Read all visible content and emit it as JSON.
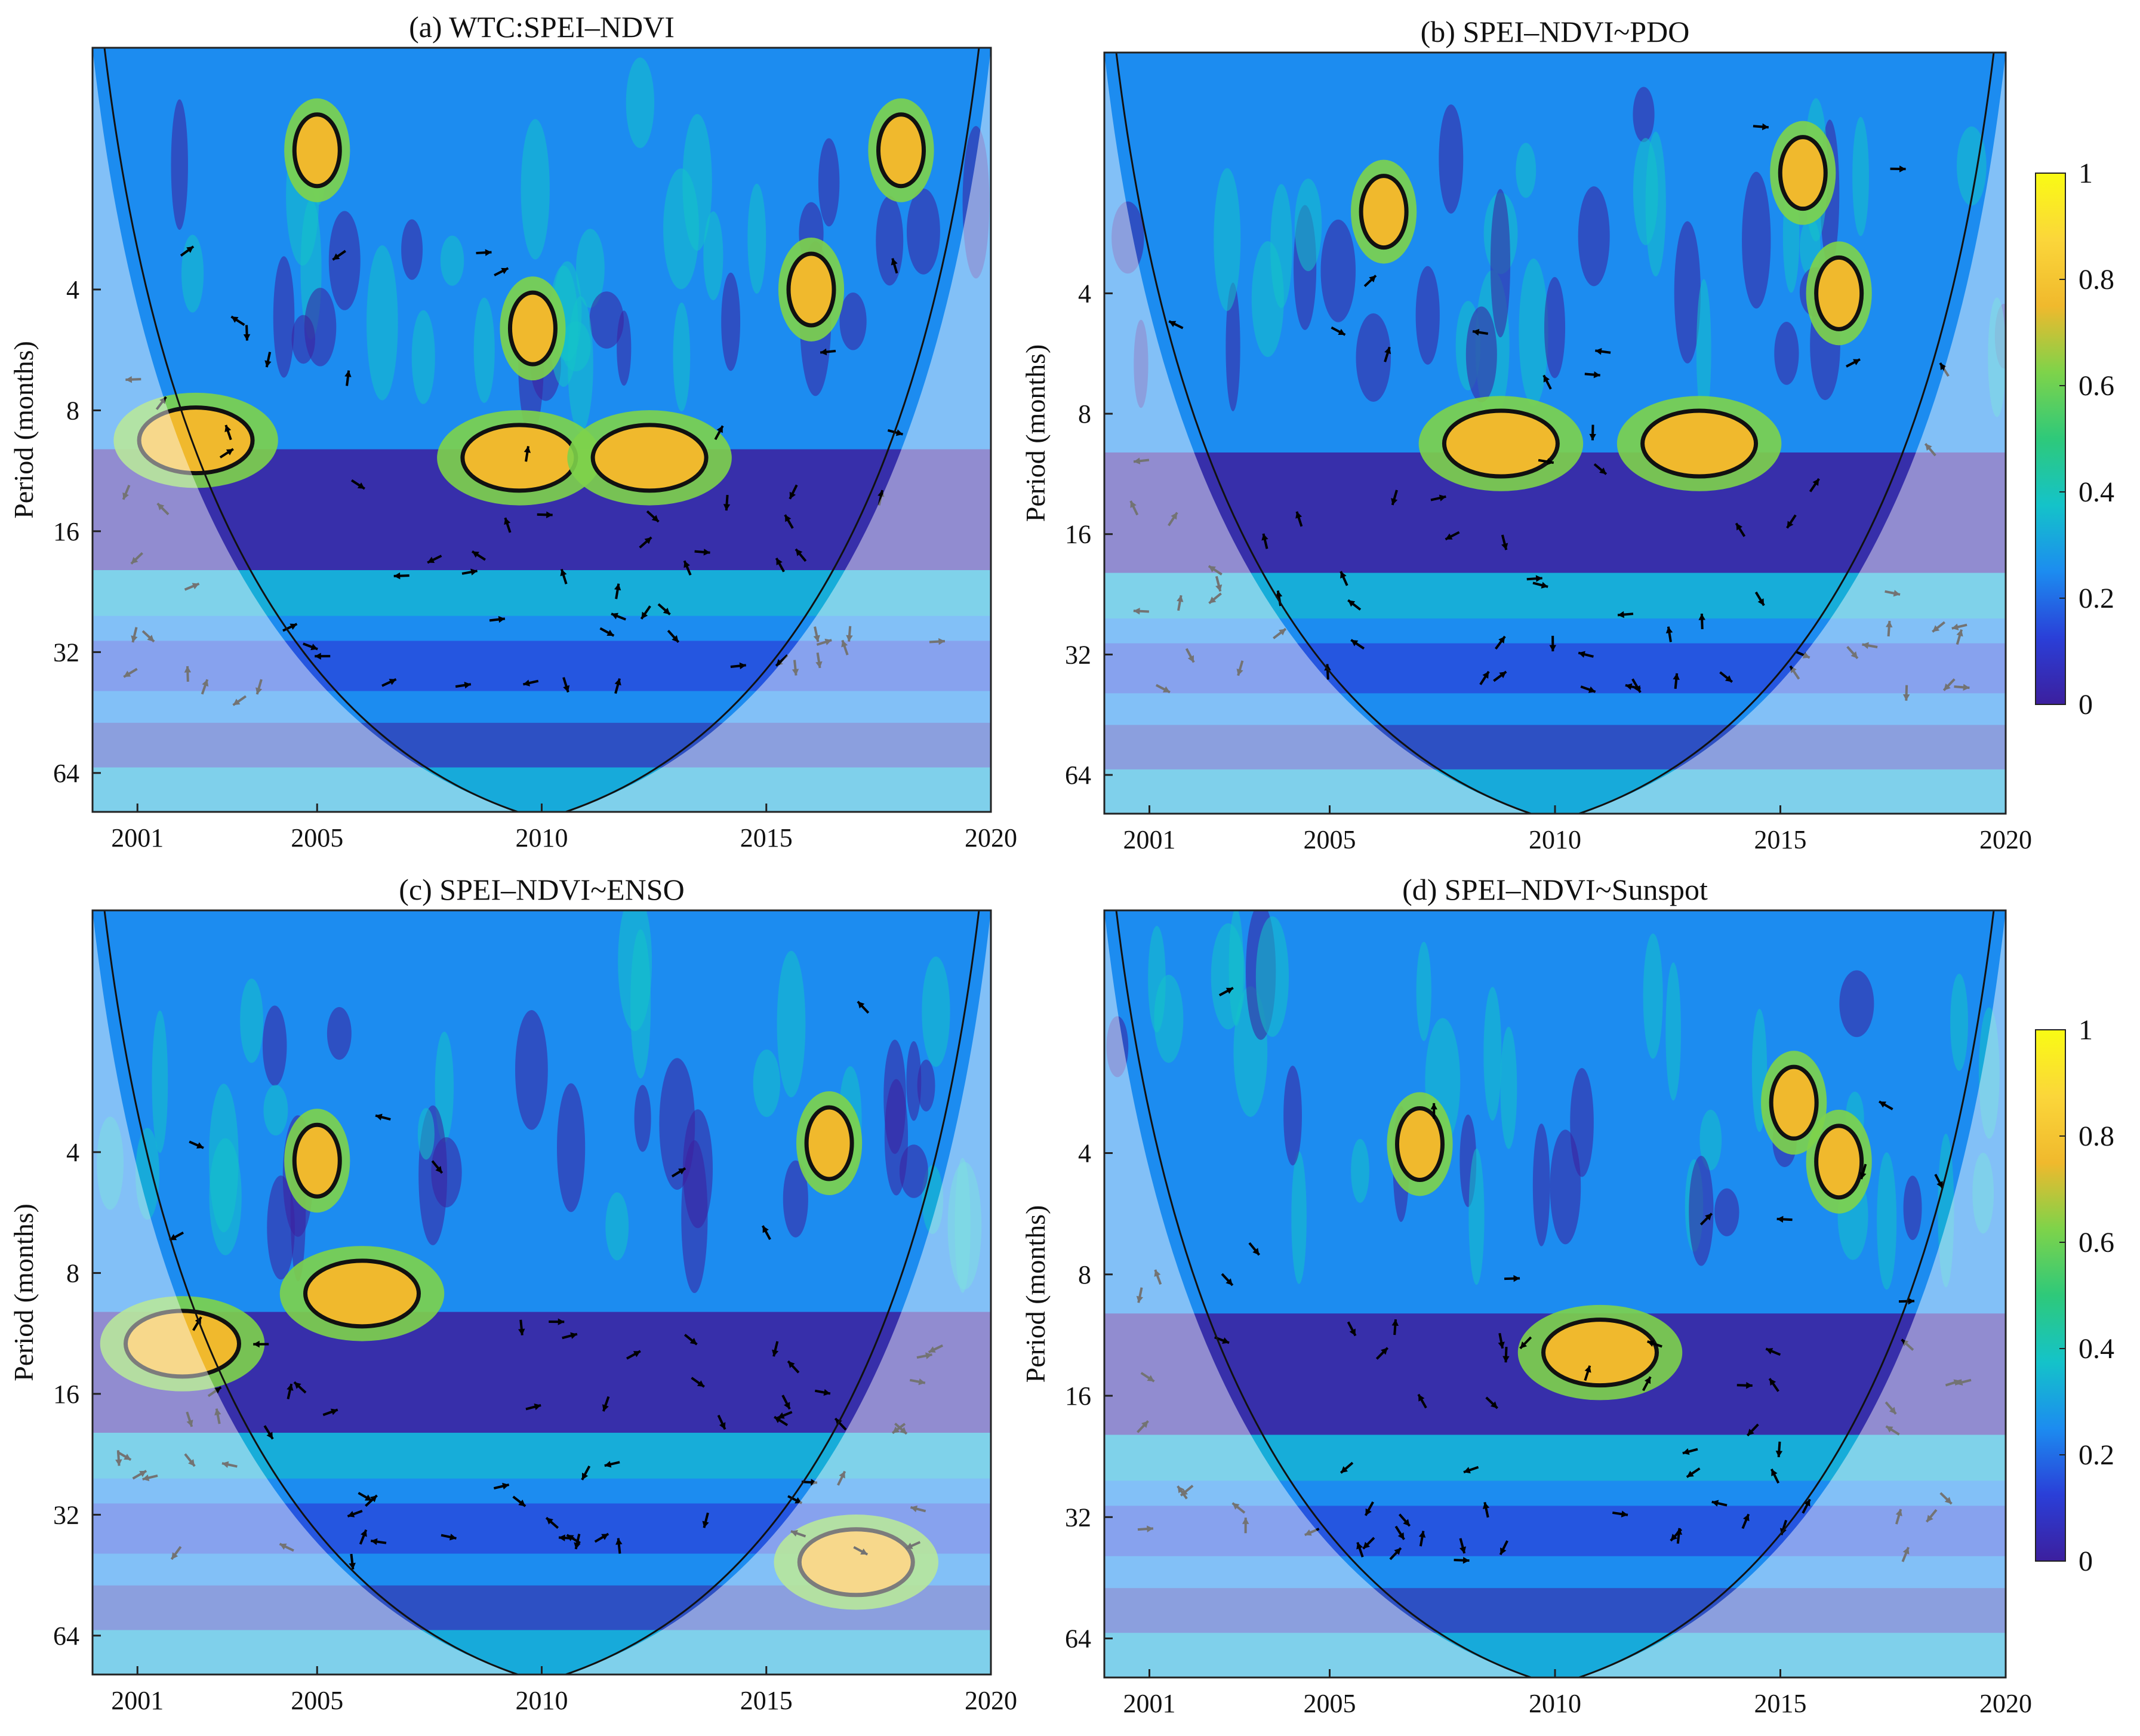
{
  "figure": {
    "colormap": [
      "#3c1f9e",
      "#2a3fd8",
      "#1c8cf0",
      "#14c3c9",
      "#2ec97a",
      "#7ed34a",
      "#f0b92d",
      "#fbd63a",
      "#f9fb14"
    ],
    "coi_overlay": "#ffffff",
    "arrow_color_significant": "#000000",
    "arrow_color_outside": "#8a8a8a",
    "colorbar": {
      "ticks": [
        "0",
        "0.2",
        "0.4",
        "0.6",
        "0.8",
        "1"
      ],
      "range": [
        0,
        1
      ]
    }
  },
  "chart_data": [
    {
      "type": "heatmap",
      "title": "(a) WTC:SPEI–NDVI",
      "ylabel": "Period (months)",
      "xticks": [
        "2001",
        "2005",
        "2010",
        "2015",
        "2020"
      ],
      "yticks": [
        "4",
        "8",
        "16",
        "32",
        "64"
      ],
      "xlim": [
        2000,
        2020
      ],
      "ylim_log2": [
        1,
        80
      ],
      "significant_regions": [
        {
          "x": 2002.3,
          "period": 9.5
        },
        {
          "x": 2009.5,
          "period": 10.5
        },
        {
          "x": 2012.4,
          "period": 10.5
        },
        {
          "x": 2009.8,
          "period": 5.0
        },
        {
          "x": 2016.0,
          "period": 4.0
        },
        {
          "x": 2018.0,
          "period": 1.8
        },
        {
          "x": 2005.0,
          "period": 1.8
        }
      ],
      "colorbar": false
    },
    {
      "type": "heatmap",
      "title": "(b) SPEI–NDVI~PDO",
      "ylabel": "Period (months)",
      "xticks": [
        "2001",
        "2005",
        "2010",
        "2015",
        "2020"
      ],
      "yticks": [
        "4",
        "8",
        "16",
        "32",
        "64"
      ],
      "xlim": [
        2000,
        2020
      ],
      "ylim_log2": [
        1,
        80
      ],
      "significant_regions": [
        {
          "x": 2008.8,
          "period": 9.5
        },
        {
          "x": 2013.2,
          "period": 9.5
        },
        {
          "x": 2016.3,
          "period": 4.0
        },
        {
          "x": 2006.2,
          "period": 2.5
        },
        {
          "x": 2015.5,
          "period": 2.0
        }
      ],
      "colorbar": true
    },
    {
      "type": "heatmap",
      "title": "(c) SPEI–NDVI~ENSO",
      "ylabel": "Period (months)",
      "xticks": [
        "2001",
        "2005",
        "2010",
        "2015",
        "2020"
      ],
      "yticks": [
        "4",
        "8",
        "16",
        "32",
        "64"
      ],
      "xlim": [
        2000,
        2020
      ],
      "ylim_log2": [
        1,
        80
      ],
      "significant_regions": [
        {
          "x": 2002.0,
          "period": 12.0
        },
        {
          "x": 2006.0,
          "period": 9.0
        },
        {
          "x": 2005.0,
          "period": 4.2
        },
        {
          "x": 2016.4,
          "period": 3.8
        },
        {
          "x": 2017.0,
          "period": 42.0
        }
      ],
      "colorbar": false
    },
    {
      "type": "heatmap",
      "title": "(d) SPEI–NDVI~Sunspot",
      "ylabel": "Period (months)",
      "xticks": [
        "2001",
        "2005",
        "2010",
        "2015",
        "2020"
      ],
      "yticks": [
        "4",
        "8",
        "16",
        "32",
        "64"
      ],
      "xlim": [
        2000,
        2020
      ],
      "ylim_log2": [
        1,
        80
      ],
      "significant_regions": [
        {
          "x": 2011.0,
          "period": 12.5
        },
        {
          "x": 2007.0,
          "period": 3.8
        },
        {
          "x": 2016.3,
          "period": 4.2
        },
        {
          "x": 2015.3,
          "period": 3.0
        }
      ],
      "colorbar": true
    }
  ]
}
